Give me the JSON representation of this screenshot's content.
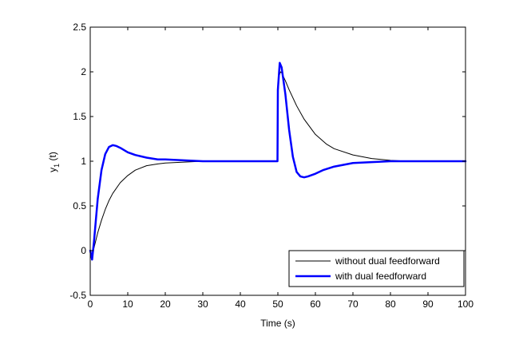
{
  "chart_data": {
    "type": "line",
    "title": "",
    "xlabel": "Time (s)",
    "ylabel_main": "y",
    "ylabel_sub": "1",
    "ylabel_tail": " (t)",
    "xlim": [
      0,
      100
    ],
    "ylim": [
      -0.5,
      2.5
    ],
    "xticks": [
      0,
      10,
      20,
      30,
      40,
      50,
      60,
      70,
      80,
      90,
      100
    ],
    "yticks": [
      -0.5,
      0,
      0.5,
      1,
      1.5,
      2,
      2.5
    ],
    "ytick_labels": [
      "-0.5",
      "0",
      "0.5",
      "1",
      "1.5",
      "2",
      "2.5"
    ],
    "grid": false,
    "legend_position": "bottom-right",
    "series": [
      {
        "name": "without dual feedforward",
        "color": "#000000",
        "line_style": "thin",
        "x": [
          0,
          0.5,
          1,
          2,
          3,
          4,
          5,
          6,
          8,
          10,
          12,
          15,
          18,
          20,
          25,
          30,
          35,
          40,
          45,
          49.9,
          50.0,
          50.3,
          50.7,
          51,
          52,
          53,
          55,
          57,
          60,
          63,
          65,
          70,
          75,
          80,
          85,
          90,
          95,
          100
        ],
        "y": [
          0,
          -0.06,
          0.03,
          0.2,
          0.34,
          0.46,
          0.56,
          0.64,
          0.76,
          0.84,
          0.9,
          0.95,
          0.97,
          0.98,
          0.99,
          1.0,
          1.0,
          1.0,
          1.0,
          1.0,
          1.7,
          1.95,
          2.0,
          1.99,
          1.9,
          1.8,
          1.62,
          1.47,
          1.3,
          1.19,
          1.14,
          1.07,
          1.03,
          1.01,
          1.0,
          1.0,
          1.0,
          1.0
        ]
      },
      {
        "name": "with dual feedforward",
        "color": "#0000ff",
        "line_style": "thick",
        "x": [
          0,
          0.5,
          1,
          2,
          3,
          4,
          5,
          6,
          7,
          8,
          10,
          12,
          15,
          18,
          20,
          25,
          30,
          35,
          40,
          45,
          49.9,
          50.0,
          50.5,
          51,
          52,
          53,
          54,
          55,
          56,
          57,
          58,
          60,
          62,
          65,
          70,
          75,
          80,
          85,
          90,
          95,
          100
        ],
        "y": [
          0,
          -0.1,
          0.1,
          0.58,
          0.9,
          1.08,
          1.16,
          1.18,
          1.17,
          1.15,
          1.1,
          1.07,
          1.04,
          1.02,
          1.02,
          1.01,
          1.0,
          1.0,
          1.0,
          1.0,
          1.0,
          1.8,
          2.1,
          2.05,
          1.75,
          1.35,
          1.05,
          0.88,
          0.83,
          0.82,
          0.83,
          0.86,
          0.9,
          0.94,
          0.98,
          0.99,
          1.0,
          1.0,
          1.0,
          1.0,
          1.0
        ]
      }
    ]
  }
}
